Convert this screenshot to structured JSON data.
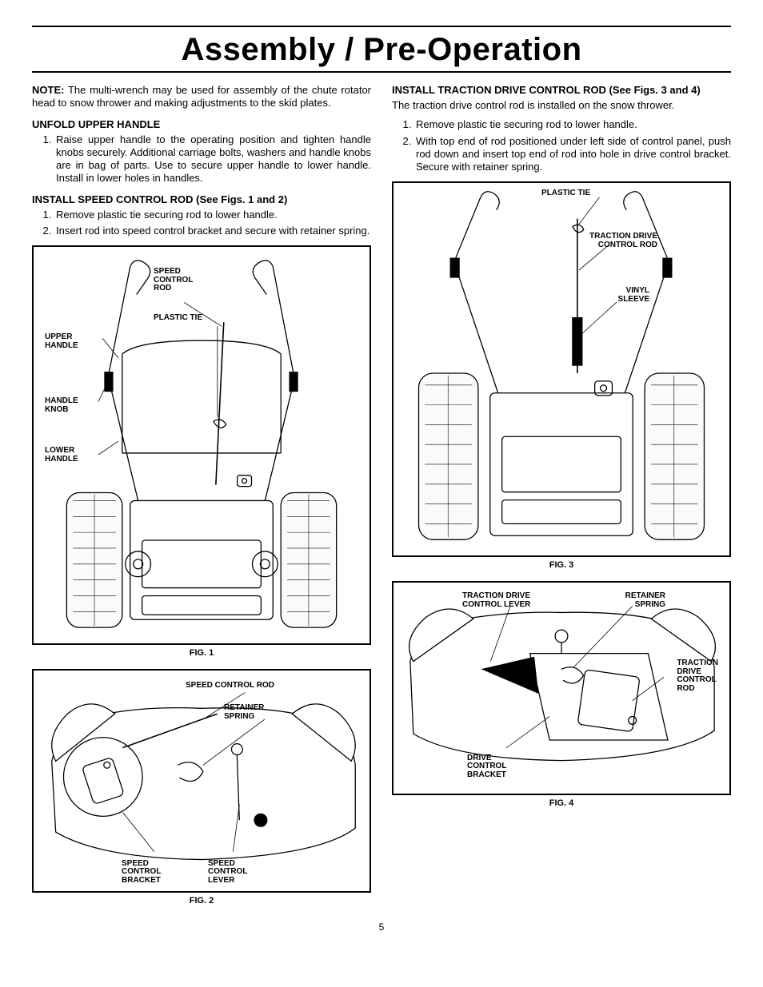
{
  "page": {
    "title": "Assembly / Pre-Operation",
    "page_number": "5"
  },
  "left": {
    "note_label": "NOTE:",
    "note_text": " The multi-wrench may be used for assembly of the chute rotator head to snow thrower and making adjustments to the skid plates.",
    "sect1_head": "UNFOLD UPPER HANDLE",
    "sect1_step1": "Raise upper handle to the operating position and tighten handle knobs securely.  Additional carriage bolts, washers and handle knobs are in bag of parts.  Use to secure upper handle to lower handle.  Install in lower holes in handles.",
    "sect2_head": "INSTALL SPEED CONTROL ROD (See Figs. 1 and 2)",
    "sect2_step1": "Remove plastic tie securing rod to lower handle.",
    "sect2_step2": "Insert rod into speed control bracket and secure with retainer spring.",
    "fig1": {
      "caption": "FIG. 1",
      "labels": {
        "speed_control_rod": "SPEED\nCONTROL\nROD",
        "plastic_tie": "PLASTIC TIE",
        "upper_handle": "UPPER\nHANDLE",
        "handle_knob": "HANDLE\nKNOB",
        "lower_handle": "LOWER\nHANDLE"
      }
    },
    "fig2": {
      "caption": "FIG. 2",
      "labels": {
        "speed_control_rod": "SPEED CONTROL ROD",
        "retainer_spring": "RETAINER\nSPRING",
        "speed_control_bracket": "SPEED\nCONTROL\nBRACKET",
        "speed_control_lever": "SPEED\nCONTROL\nLEVER"
      }
    }
  },
  "right": {
    "sect1_head": "INSTALL TRACTION DRIVE CONTROL ROD (See Figs. 3 and 4)",
    "sect1_body": "The traction drive control rod is installed on the snow thrower.",
    "sect1_step1": "Remove plastic tie securing rod to lower handle.",
    "sect1_step2": "With top end of rod positioned under left side of control panel, push rod down and insert top end of rod into hole in drive control bracket.  Secure with retainer spring.",
    "fig3": {
      "caption": "FIG. 3",
      "labels": {
        "plastic_tie": "PLASTIC TIE",
        "traction_drive_control_rod": "TRACTION DRIVE\nCONTROL ROD",
        "vinyl_sleeve": "VINYL\nSLEEVE"
      }
    },
    "fig4": {
      "caption": "FIG. 4",
      "labels": {
        "traction_drive_control_lever": "TRACTION DRIVE\nCONTROL LEVER",
        "retainer_spring": "RETAINER\nSPRING",
        "traction_drive_control_rod": "TRACTION\nDRIVE\nCONTROL\nROD",
        "drive_control_bracket": "DRIVE\nCONTROL\nBRACKET"
      }
    }
  },
  "style": {
    "stroke": "#000000",
    "fill_none": "none",
    "wheel_fill": "#f5f5f5",
    "grip_fill": "#000000"
  }
}
